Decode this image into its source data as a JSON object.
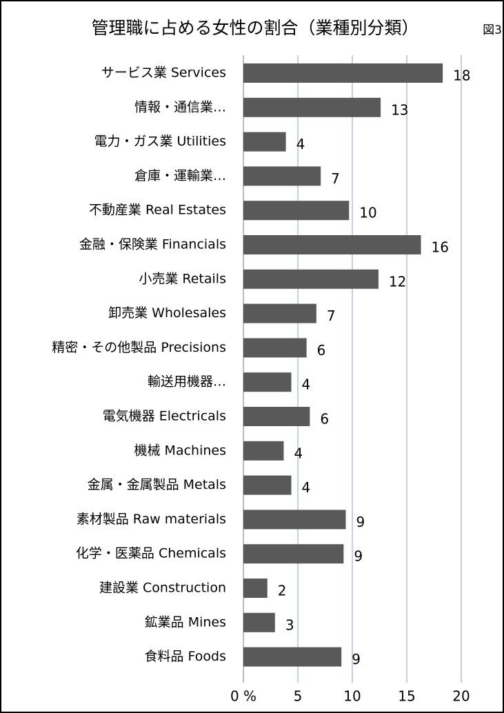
{
  "chart_data": {
    "type": "barh",
    "title": "管理職に占める女性の割合（業種別分類）",
    "annotation": "図3",
    "categories": [
      "サービス業 Services",
      "情報・通信業…",
      "電力・ガス業 Utilities",
      "倉庫・運輸業…",
      "不動産業 Real Estates",
      "金融・保険業 Financials",
      "小売業 Retails",
      "卸売業 Wholesales",
      "精密・その他製品 Precisions",
      "輸送用機器…",
      "電気機器 Electricals",
      "機械 Machines",
      "金属・金属製品 Metals",
      "素材製品 Raw materials",
      "化学・医薬品 Chemicals",
      "建設業 Construction",
      "鉱業品 Mines",
      "食料品 Foods"
    ],
    "values": [
      18.3,
      12.6,
      3.9,
      7.1,
      9.7,
      16.3,
      12.4,
      6.7,
      5.8,
      4.4,
      6.1,
      3.7,
      4.4,
      9.4,
      9.2,
      2.2,
      2.9,
      9.0
    ],
    "value_labels": [
      "18",
      "13",
      "4",
      "7",
      "10",
      "16",
      "12",
      "7",
      "6",
      "4",
      "6",
      "4",
      "4",
      "9",
      "9",
      "2",
      "3",
      "9"
    ],
    "color": "#595959",
    "xlim": [
      0,
      20
    ],
    "xticks": [
      {
        "value": 0,
        "label": "0 %"
      },
      5,
      10,
      15,
      20
    ],
    "grid": true
  }
}
